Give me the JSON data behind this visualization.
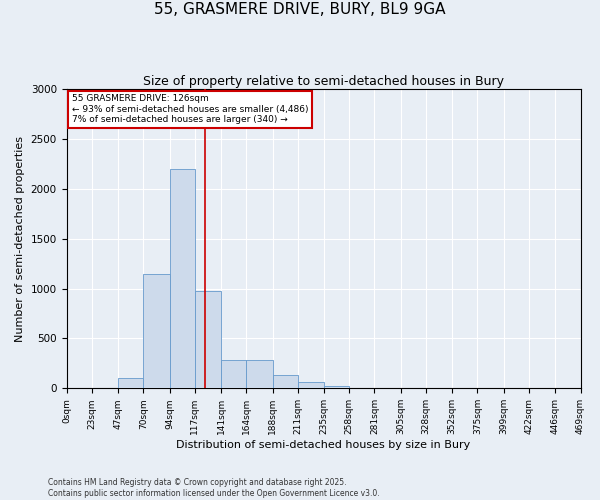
{
  "title": "55, GRASMERE DRIVE, BURY, BL9 9GA",
  "subtitle": "Size of property relative to semi-detached houses in Bury",
  "xlabel": "Distribution of semi-detached houses by size in Bury",
  "ylabel": "Number of semi-detached properties",
  "footnote1": "Contains HM Land Registry data © Crown copyright and database right 2025.",
  "footnote2": "Contains public sector information licensed under the Open Government Licence v3.0.",
  "bin_edges": [
    0,
    23,
    47,
    70,
    94,
    117,
    141,
    164,
    188,
    211,
    235,
    258,
    281,
    305,
    328,
    352,
    375,
    399,
    422,
    446,
    469
  ],
  "bar_heights": [
    0,
    0,
    100,
    1150,
    2200,
    980,
    280,
    280,
    130,
    60,
    20,
    8,
    3,
    1,
    0,
    0,
    0,
    0,
    0,
    0
  ],
  "bar_color": "#cddaeb",
  "bar_edge_color": "#6699cc",
  "bg_color": "#e8eef5",
  "property_size": 126,
  "red_line_color": "#cc0000",
  "annotation_text": "55 GRASMERE DRIVE: 126sqm\n← 93% of semi-detached houses are smaller (4,486)\n7% of semi-detached houses are larger (340) →",
  "annotation_box_color": "#cc0000",
  "ylim": [
    0,
    3000
  ],
  "yticks": [
    0,
    500,
    1000,
    1500,
    2000,
    2500,
    3000
  ],
  "title_fontsize": 11,
  "subtitle_fontsize": 9,
  "tick_label_fontsize": 6.5,
  "axis_label_fontsize": 8,
  "footnote_fontsize": 5.5
}
